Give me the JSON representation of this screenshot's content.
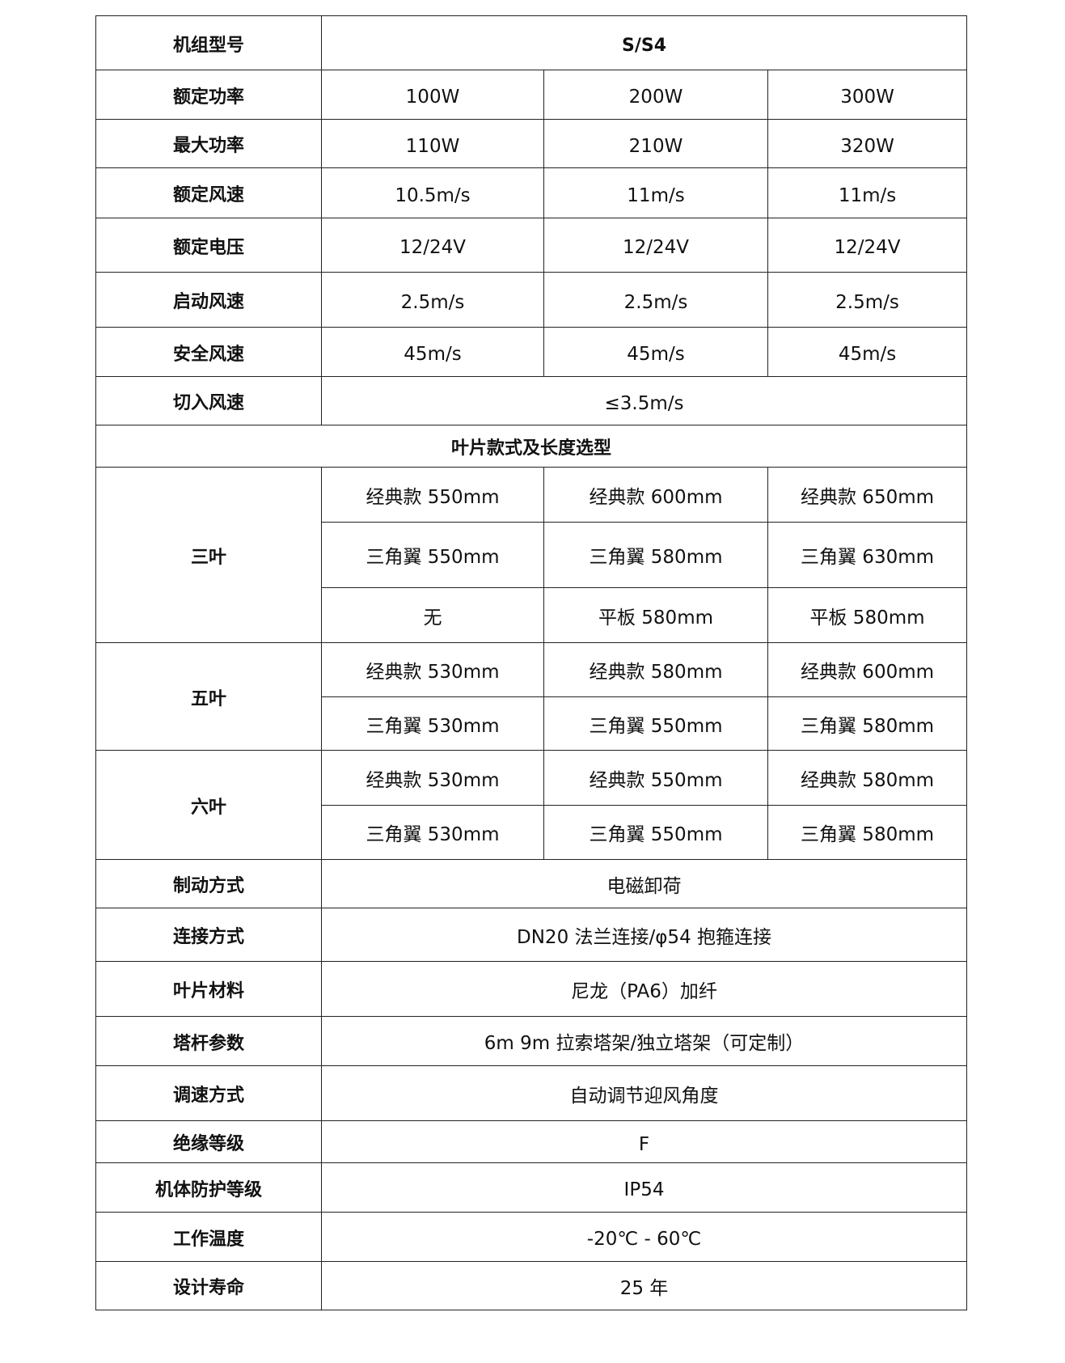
{
  "model": {
    "label": "机组型号",
    "value": "S/S4"
  },
  "rated_rows": [
    {
      "label": "额定功率",
      "values": [
        "100W",
        "200W",
        "300W"
      ]
    },
    {
      "label": "最大功率",
      "values": [
        "110W",
        "210W",
        "320W"
      ]
    },
    {
      "label": "额定风速",
      "values": [
        "10.5m/s",
        "11m/s",
        "11m/s"
      ]
    },
    {
      "label": "额定电压",
      "values": [
        "12/24V",
        "12/24V",
        "12/24V"
      ]
    },
    {
      "label": "启动风速",
      "values": [
        "2.5m/s",
        "2.5m/s",
        "2.5m/s"
      ]
    },
    {
      "label": "安全风速",
      "values": [
        "45m/s",
        "45m/s",
        "45m/s"
      ]
    }
  ],
  "cut_in": {
    "label": "切入风速",
    "value": "≤3.5m/s"
  },
  "blade_section_title": "叶片款式及长度选型",
  "blades": [
    {
      "label": "三叶",
      "rows": [
        [
          "经典款 550mm",
          "经典款 600mm",
          "经典款 650mm"
        ],
        [
          "三角翼 550mm",
          "三角翼 580mm",
          "三角翼 630mm"
        ],
        [
          "无",
          "平板 580mm",
          "平板 580mm"
        ]
      ]
    },
    {
      "label": "五叶",
      "rows": [
        [
          "经典款 530mm",
          "经典款 580mm",
          "经典款 600mm"
        ],
        [
          "三角翼 530mm",
          "三角翼 550mm",
          "三角翼 580mm"
        ]
      ]
    },
    {
      "label": "六叶",
      "rows": [
        [
          "经典款 530mm",
          "经典款 550mm",
          "经典款 580mm"
        ],
        [
          "三角翼 530mm",
          "三角翼 550mm",
          "三角翼 580mm"
        ]
      ]
    }
  ],
  "spec_rows": [
    {
      "label": "制动方式",
      "value": "电磁卸荷"
    },
    {
      "label": "连接方式",
      "value": "DN20 法兰连接/φ54 抱箍连接"
    },
    {
      "label": "叶片材料",
      "value": "尼龙（PA6）加纤"
    },
    {
      "label": "塔杆参数",
      "value": "6m 9m  拉索塔架/独立塔架（可定制）"
    },
    {
      "label": "调速方式",
      "value": "自动调节迎风角度"
    },
    {
      "label": "绝缘等级",
      "value": "F"
    },
    {
      "label": "机体防护等级",
      "value": "IP54"
    },
    {
      "label": "工作温度",
      "value": "-20℃ - 60℃"
    },
    {
      "label": "设计寿命",
      "value": "25 年"
    }
  ]
}
